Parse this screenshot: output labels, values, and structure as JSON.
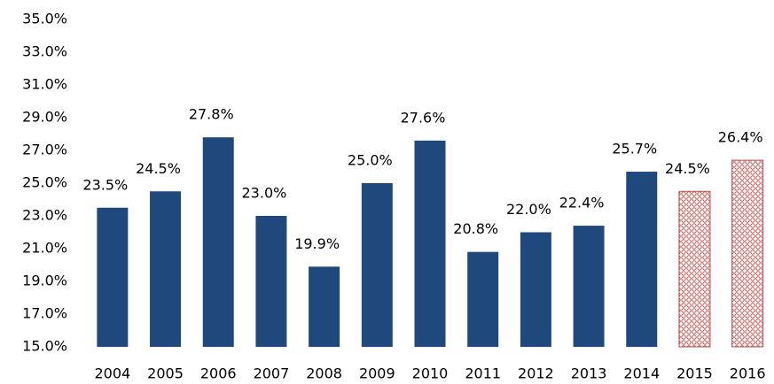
{
  "chart_data": {
    "type": "bar",
    "categories": [
      "2004",
      "2005",
      "2006",
      "2007",
      "2008",
      "2009",
      "2010",
      "2011",
      "2012",
      "2013",
      "2014",
      "2015",
      "2016"
    ],
    "values": [
      23.5,
      24.5,
      27.8,
      23.0,
      19.9,
      25.0,
      27.6,
      20.8,
      22.0,
      22.4,
      25.7,
      24.5,
      26.4
    ],
    "value_labels": [
      "23.5%",
      "24.5%",
      "27.8%",
      "23.0%",
      "19.9%",
      "25.0%",
      "27.6%",
      "20.8%",
      "22.0%",
      "22.4%",
      "25.7%",
      "24.5%",
      "26.4%"
    ],
    "colors": [
      "#1f497d",
      "#1f497d",
      "#1f497d",
      "#1f497d",
      "#1f497d",
      "#1f497d",
      "#1f497d",
      "#1f497d",
      "#1f497d",
      "#1f497d",
      "#1f497d",
      "#c0504d",
      "#c0504d"
    ],
    "patterned": [
      false,
      false,
      false,
      false,
      false,
      false,
      false,
      false,
      false,
      false,
      false,
      true,
      true
    ],
    "ylim": [
      15,
      35
    ],
    "yticks": [
      {
        "value": 15,
        "label": "15.0%"
      },
      {
        "value": 17,
        "label": "17.0%"
      },
      {
        "value": 19,
        "label": "19.0%"
      },
      {
        "value": 21,
        "label": "21.0%"
      },
      {
        "value": 23,
        "label": "23.0%"
      },
      {
        "value": 25,
        "label": "25.0%"
      },
      {
        "value": 27,
        "label": "27.0%"
      },
      {
        "value": 29,
        "label": "29.0%"
      },
      {
        "value": 31,
        "label": "31.0%"
      },
      {
        "value": 33,
        "label": "33.0%"
      },
      {
        "value": 35,
        "label": "35.0%"
      }
    ],
    "grid": false
  }
}
